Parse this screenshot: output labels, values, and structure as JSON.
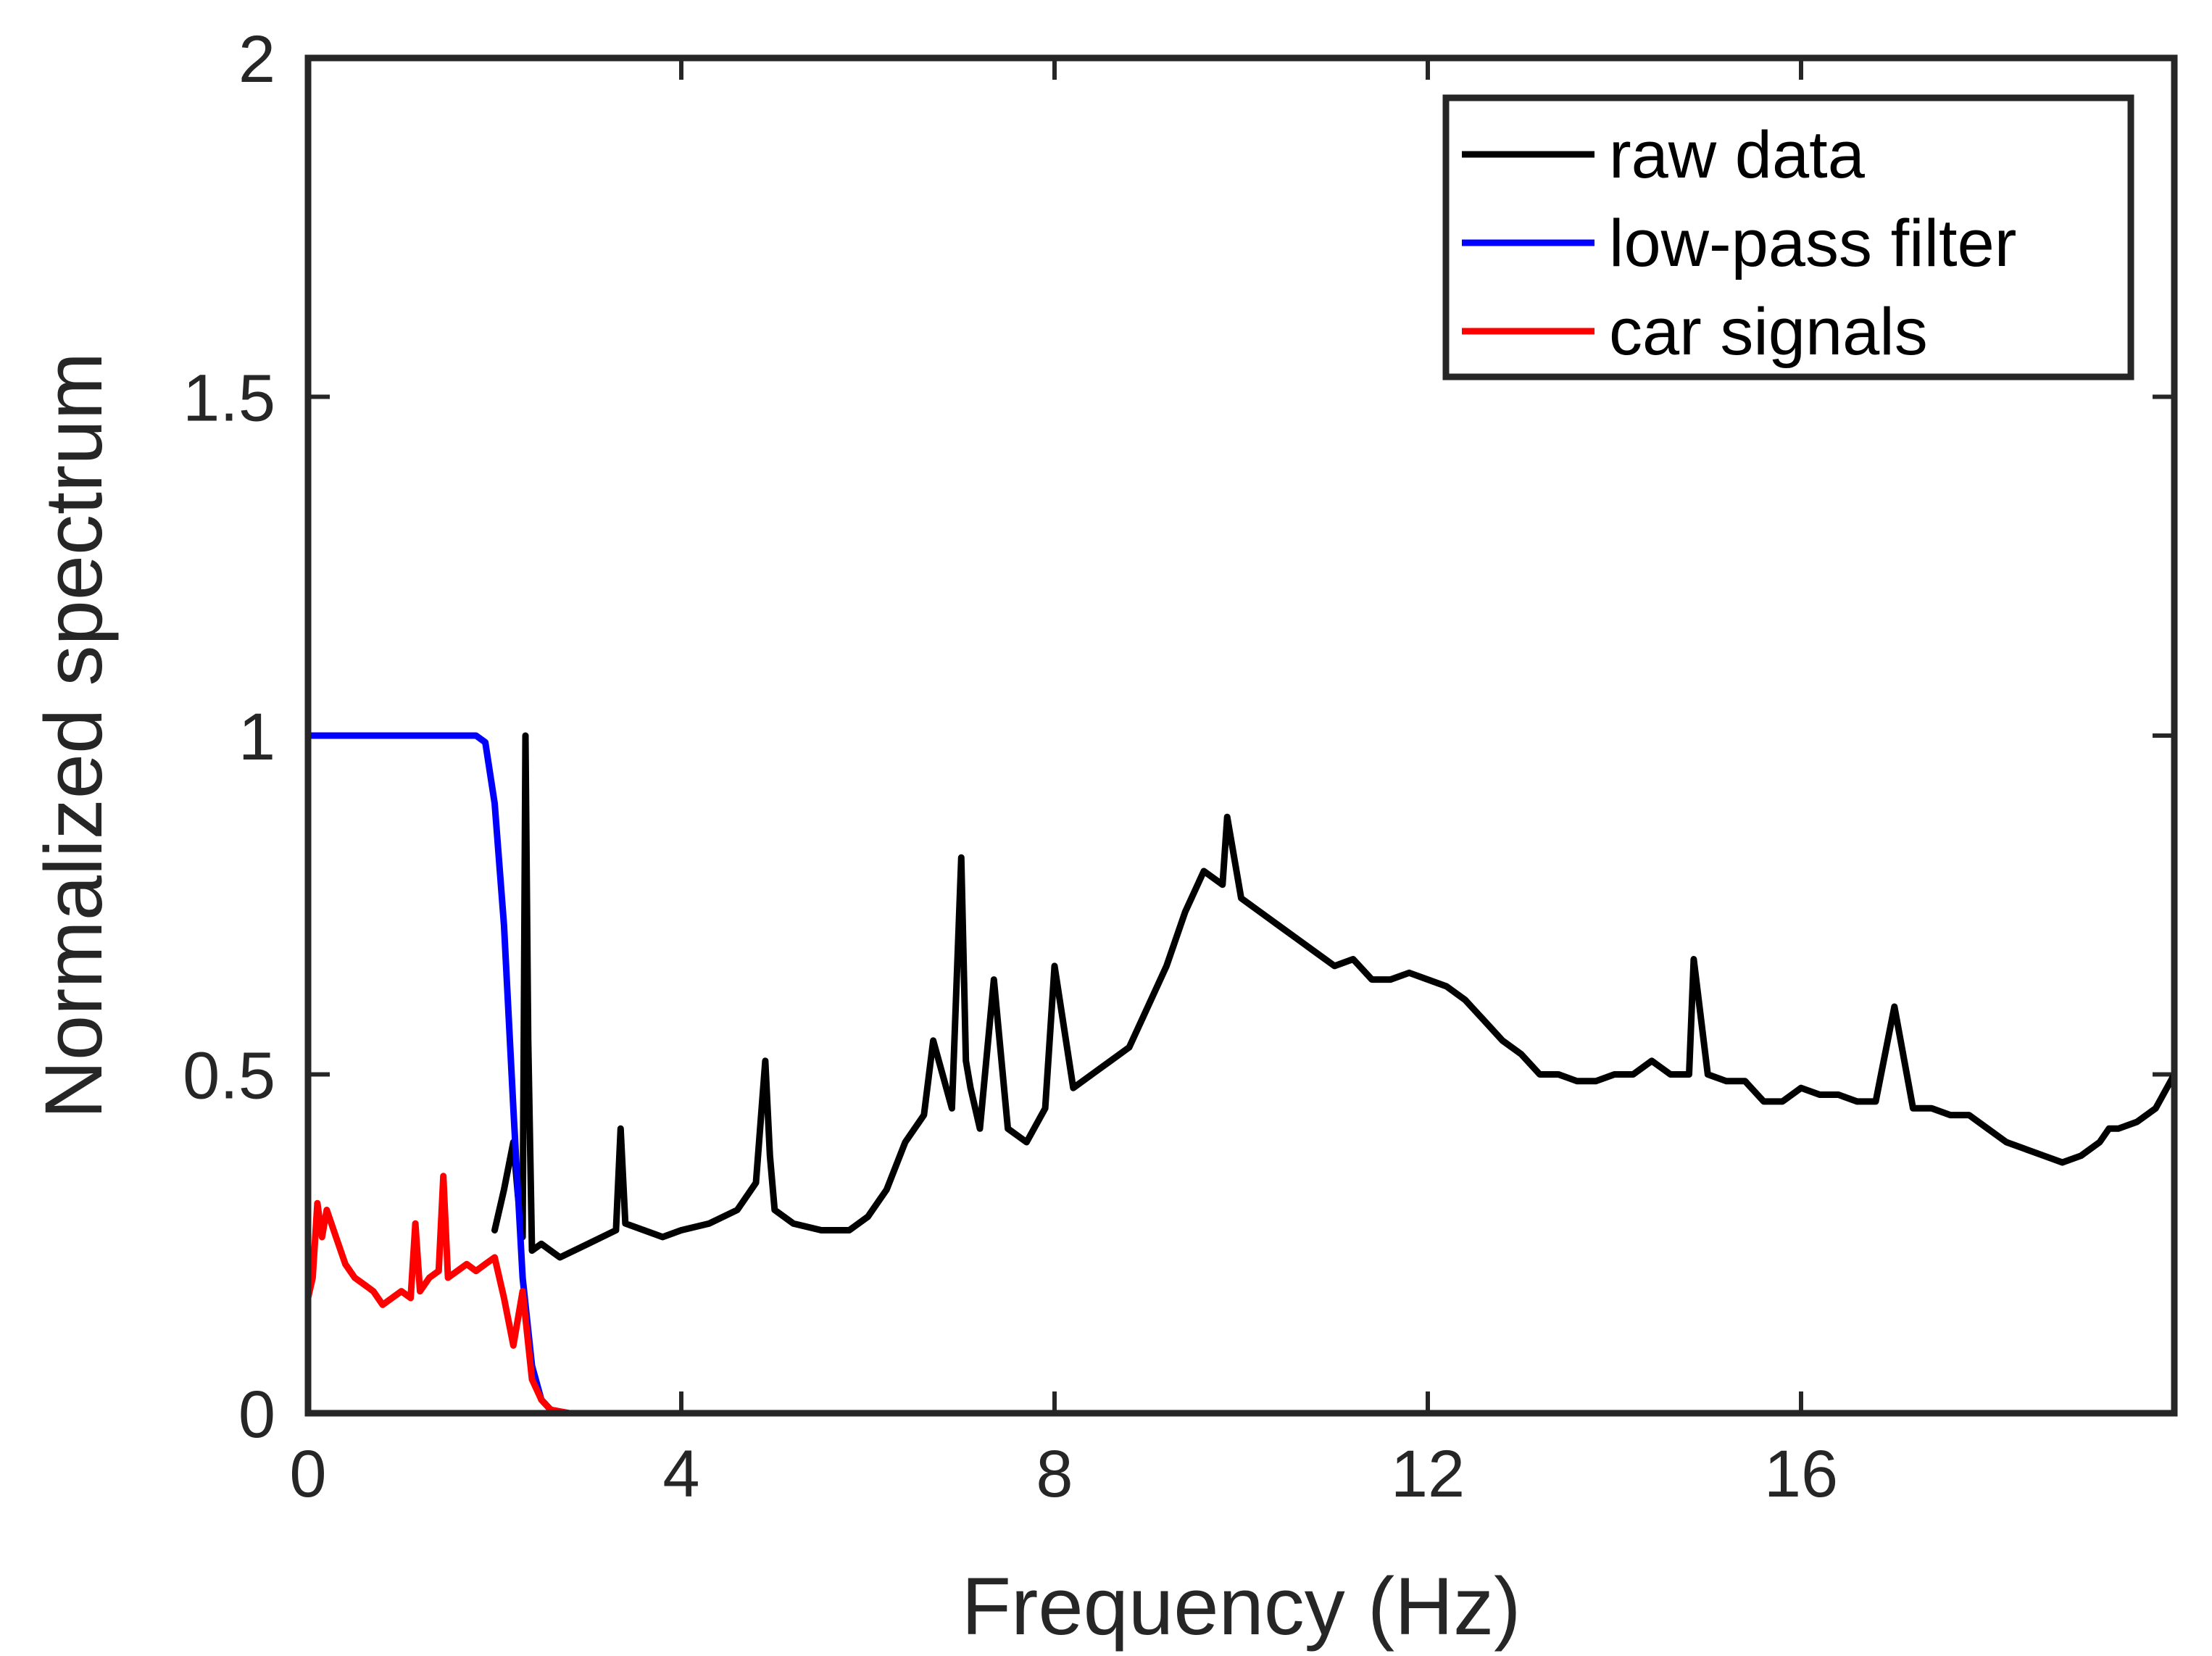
{
  "chart_data": {
    "type": "line",
    "title": "",
    "xlabel": "Frequency (Hz)",
    "ylabel": "Normalized spectrum",
    "xlim": [
      0,
      20
    ],
    "ylim": [
      0,
      2
    ],
    "xticks": [
      0,
      4,
      8,
      12,
      16
    ],
    "xtick_labels": [
      "0",
      "4",
      "8",
      "12",
      "16"
    ],
    "yticks": [
      0,
      0.5,
      1,
      1.5,
      2
    ],
    "ytick_labels": [
      "0",
      "0.5",
      "1",
      "1.5",
      "2"
    ],
    "grid": false,
    "legend_position": "top-right",
    "series": [
      {
        "name": "raw data",
        "color": "#000000",
        "x": [
          2.0,
          2.1,
          2.2,
          2.25,
          2.3,
          2.33,
          2.36,
          2.4,
          2.5,
          2.7,
          3.0,
          3.3,
          3.35,
          3.4,
          3.6,
          3.8,
          4.0,
          4.3,
          4.6,
          4.8,
          4.9,
          4.95,
          5.0,
          5.2,
          5.5,
          5.8,
          6.0,
          6.2,
          6.4,
          6.6,
          6.7,
          6.8,
          6.9,
          7.0,
          7.05,
          7.1,
          7.2,
          7.35,
          7.5,
          7.7,
          7.9,
          8.0,
          8.2,
          8.4,
          8.6,
          8.8,
          9.0,
          9.2,
          9.4,
          9.6,
          9.8,
          9.85,
          10.0,
          10.2,
          10.4,
          10.6,
          10.8,
          11.0,
          11.2,
          11.4,
          11.6,
          11.8,
          12.0,
          12.2,
          12.4,
          12.6,
          12.8,
          13.0,
          13.2,
          13.4,
          13.6,
          13.8,
          14.0,
          14.2,
          14.4,
          14.6,
          14.8,
          14.85,
          15.0,
          15.2,
          15.4,
          15.6,
          15.8,
          16.0,
          16.2,
          16.4,
          16.6,
          16.8,
          17.0,
          17.2,
          17.4,
          17.6,
          17.8,
          18.0,
          18.2,
          18.4,
          18.6,
          18.8,
          19.0,
          19.2,
          19.3,
          19.4,
          19.6,
          19.8,
          20.0
        ],
        "values": [
          0.27,
          0.33,
          0.4,
          0.32,
          0.26,
          1.0,
          0.55,
          0.24,
          0.25,
          0.23,
          0.25,
          0.27,
          0.42,
          0.28,
          0.27,
          0.26,
          0.27,
          0.28,
          0.3,
          0.34,
          0.52,
          0.38,
          0.3,
          0.28,
          0.27,
          0.27,
          0.29,
          0.33,
          0.4,
          0.44,
          0.55,
          0.5,
          0.45,
          0.82,
          0.52,
          0.48,
          0.42,
          0.64,
          0.42,
          0.4,
          0.45,
          0.66,
          0.48,
          0.5,
          0.52,
          0.54,
          0.6,
          0.66,
          0.74,
          0.8,
          0.78,
          0.88,
          0.76,
          0.74,
          0.72,
          0.7,
          0.68,
          0.66,
          0.67,
          0.64,
          0.64,
          0.65,
          0.64,
          0.63,
          0.61,
          0.58,
          0.55,
          0.53,
          0.5,
          0.5,
          0.49,
          0.49,
          0.5,
          0.5,
          0.52,
          0.5,
          0.5,
          0.67,
          0.5,
          0.49,
          0.49,
          0.46,
          0.46,
          0.48,
          0.47,
          0.47,
          0.46,
          0.46,
          0.6,
          0.45,
          0.45,
          0.44,
          0.44,
          0.42,
          0.4,
          0.39,
          0.38,
          0.37,
          0.38,
          0.4,
          0.42,
          0.42,
          0.43,
          0.45,
          0.5
        ]
      },
      {
        "name": "low-pass filter",
        "color": "#0000ff",
        "x": [
          0,
          0.5,
          1.0,
          1.5,
          1.8,
          1.9,
          2.0,
          2.1,
          2.2,
          2.3,
          2.4,
          2.5,
          2.6,
          2.8,
          3.0,
          20.0
        ],
        "values": [
          1.0,
          1.0,
          1.0,
          1.0,
          1.0,
          0.99,
          0.9,
          0.72,
          0.45,
          0.2,
          0.07,
          0.02,
          0.005,
          0,
          0,
          0
        ]
      },
      {
        "name": "car signals",
        "color": "#ff0000",
        "x": [
          0.0,
          0.05,
          0.1,
          0.15,
          0.2,
          0.25,
          0.3,
          0.4,
          0.5,
          0.6,
          0.7,
          0.8,
          0.9,
          1.0,
          1.1,
          1.15,
          1.2,
          1.3,
          1.4,
          1.45,
          1.5,
          1.6,
          1.7,
          1.8,
          1.9,
          2.0,
          2.1,
          2.2,
          2.3,
          2.4,
          2.5,
          2.6,
          2.8,
          3.0,
          20.0
        ],
        "values": [
          0.17,
          0.2,
          0.31,
          0.26,
          0.3,
          0.28,
          0.26,
          0.22,
          0.2,
          0.19,
          0.18,
          0.16,
          0.17,
          0.18,
          0.17,
          0.28,
          0.18,
          0.2,
          0.21,
          0.35,
          0.2,
          0.21,
          0.22,
          0.21,
          0.22,
          0.23,
          0.17,
          0.1,
          0.18,
          0.05,
          0.02,
          0.005,
          0,
          0,
          0
        ]
      }
    ]
  }
}
